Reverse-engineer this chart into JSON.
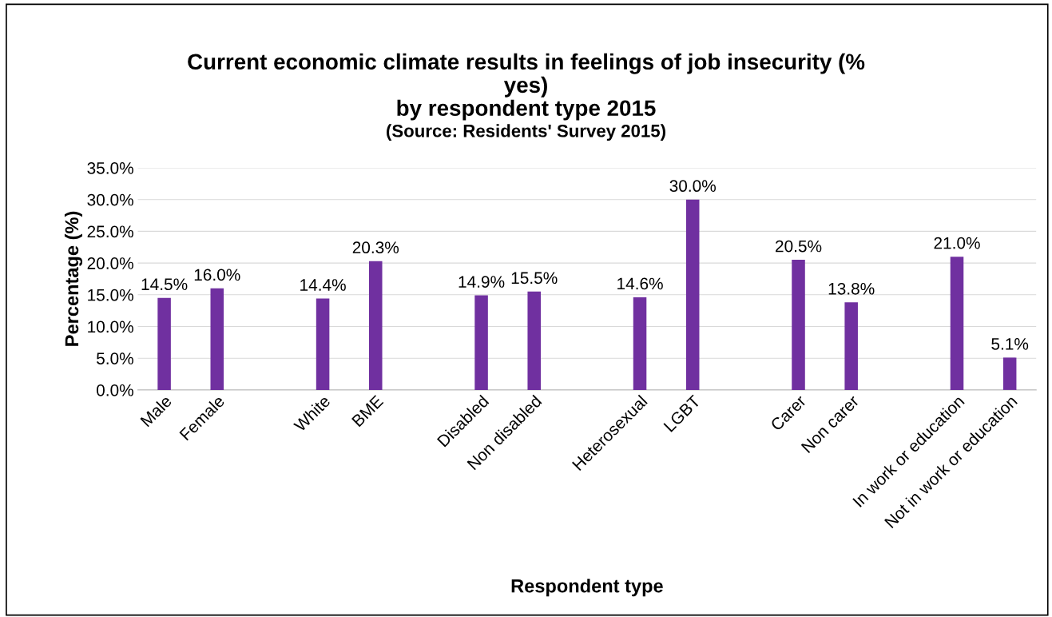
{
  "chart_data": {
    "type": "bar",
    "title": "Current economic climate results in feelings of job insecurity (%\nyes)\nby respondent type 2015",
    "subtitle": "(Source: Residents' Survey 2015)",
    "xlabel": "Respondent type",
    "ylabel": "Percentage (%)",
    "categories": [
      "Male",
      "Female",
      null,
      "White",
      "BME",
      null,
      "Disabled",
      "Non disabled",
      null,
      "Heterosexual",
      "LGBT",
      null,
      "Carer",
      "Non carer",
      null,
      "In work or education",
      "Not in work or education"
    ],
    "values": [
      14.5,
      16.0,
      null,
      14.4,
      20.3,
      null,
      14.9,
      15.5,
      null,
      14.6,
      30.0,
      null,
      20.5,
      13.8,
      null,
      21.0,
      5.1
    ],
    "value_labels": [
      "14.5%",
      "16.0%",
      null,
      "14.4%",
      "20.3%",
      null,
      "14.9%",
      "15.5%",
      null,
      "14.6%",
      "30.0%",
      null,
      "20.5%",
      "13.8%",
      null,
      "21.0%",
      "5.1%"
    ],
    "color": "#7030a0",
    "ylim": [
      0,
      35
    ],
    "yticks": [
      {
        "value": 0,
        "label": "0.0%"
      },
      {
        "value": 5,
        "label": "5.0%"
      },
      {
        "value": 10,
        "label": "10.0%"
      },
      {
        "value": 15,
        "label": "15.0%"
      },
      {
        "value": 20,
        "label": "20.0%"
      },
      {
        "value": 25,
        "label": "25.0%"
      },
      {
        "value": 30,
        "label": "30.0%"
      },
      {
        "value": 35,
        "label": "35.0%"
      }
    ],
    "grid": "y",
    "legend": false
  }
}
